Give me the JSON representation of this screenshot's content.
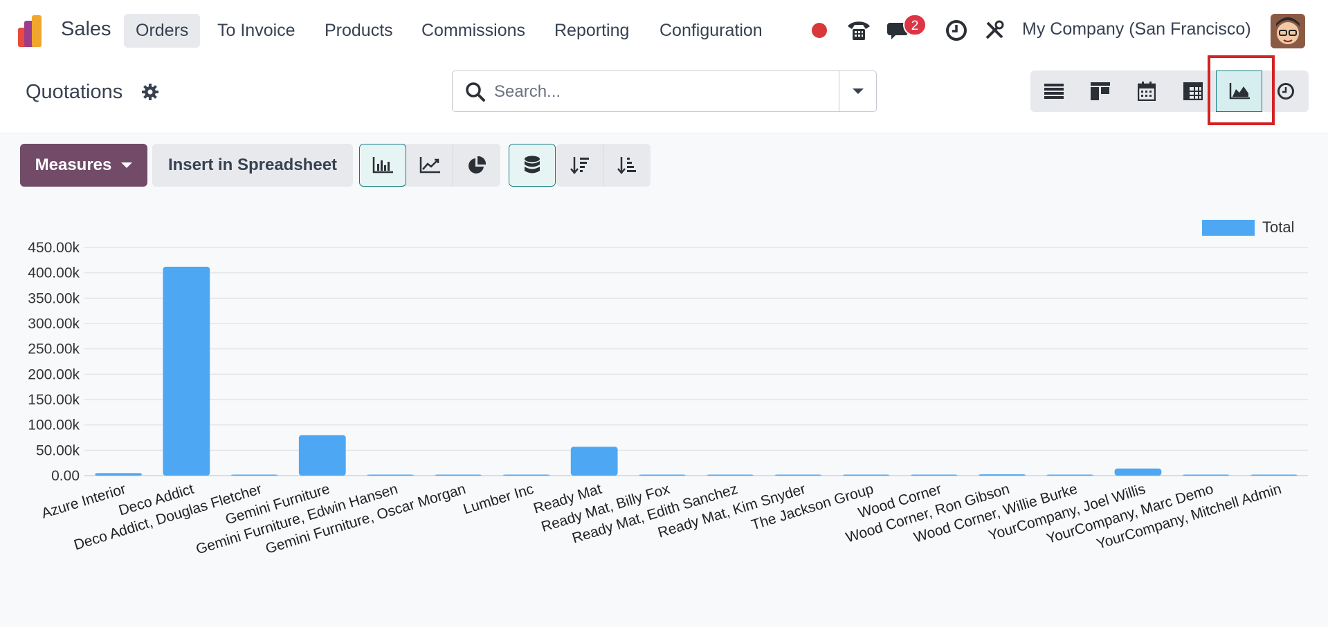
{
  "navbar": {
    "app_name": "Sales",
    "menu": [
      "Orders",
      "To Invoice",
      "Products",
      "Commissions",
      "Reporting",
      "Configuration"
    ],
    "active_menu": "Orders",
    "chat_badge": "2",
    "company": "My Company (San Francisco)"
  },
  "control_panel": {
    "title": "Quotations",
    "search_placeholder": "Search...",
    "views": [
      "list-view",
      "kanban-view",
      "calendar-view",
      "pivot-view",
      "graph-view",
      "activity-view"
    ],
    "active_view": "graph-view"
  },
  "toolbar": {
    "measures_label": "Measures",
    "insert_label": "Insert in Spreadsheet",
    "chart_types": [
      "bar-chart",
      "line-chart",
      "pie-chart"
    ],
    "active_chart_type": "bar-chart",
    "stacked": true,
    "sort": [
      "descending",
      "ascending"
    ]
  },
  "colors": {
    "accent": "#714b67",
    "bar": "#4ea7f2",
    "highlight": "#d42323"
  },
  "chart_data": {
    "type": "bar",
    "categories": [
      "Azure Interior",
      "Deco Addict",
      "Deco Addict, Douglas Fletcher",
      "Gemini Furniture",
      "Gemini Furniture, Edwin Hansen",
      "Gemini Furniture, Oscar Morgan",
      "Lumber Inc",
      "Ready Mat",
      "Ready Mat, Billy Fox",
      "Ready Mat, Edith Sanchez",
      "Ready Mat, Kim Snyder",
      "The Jackson Group",
      "Wood Corner",
      "Wood Corner, Ron Gibson",
      "Wood Corner, Willie Burke",
      "YourCompany, Joel Willis",
      "YourCompany, Marc Demo",
      "YourCompany, Mitchell Admin"
    ],
    "series": [
      {
        "name": "Total",
        "values": [
          5000,
          412000,
          500,
          80000,
          0,
          0,
          0,
          57000,
          0,
          0,
          0,
          500,
          0,
          2500,
          500,
          14000,
          500,
          500
        ]
      }
    ],
    "yticks": [
      "0.00",
      "50.00k",
      "100.00k",
      "150.00k",
      "200.00k",
      "250.00k",
      "300.00k",
      "350.00k",
      "400.00k",
      "450.00k"
    ],
    "ylim": [
      0,
      450000
    ],
    "legend_position": "top-right",
    "grid": true
  }
}
